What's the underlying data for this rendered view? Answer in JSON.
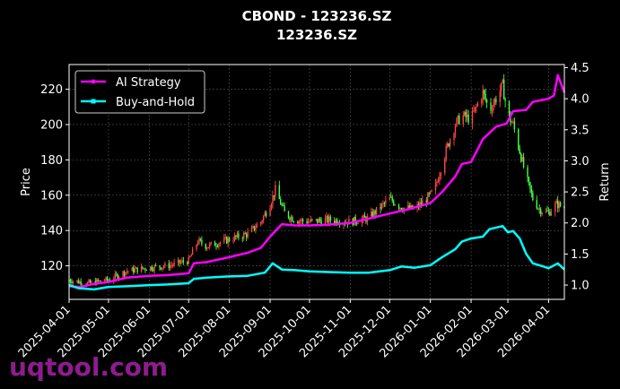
{
  "chart_data": {
    "type": "line",
    "title": "CBOND - 123236.SZ",
    "subtitle": "123236.SZ",
    "ylabel_left": "Price",
    "ylabel_right": "Return",
    "xlabel": "",
    "x_ticks": [
      "2025-04-01",
      "2025-05-01",
      "2025-06-01",
      "2025-07-01",
      "2025-08-01",
      "2025-09-01",
      "2025-10-01",
      "2025-11-01",
      "2025-12-01",
      "2026-01-01",
      "2026-02-01",
      "2026-03-01",
      "2026-04-01"
    ],
    "x_range": [
      "2025-04-01",
      "2026-04-13"
    ],
    "y_left_ticks": [
      120,
      140,
      160,
      180,
      200,
      220
    ],
    "y_left_range": [
      101,
      234
    ],
    "y_right_ticks": [
      1.0,
      1.5,
      2.0,
      2.5,
      3.0,
      3.5,
      4.0,
      4.5
    ],
    "y_right_range": [
      0.77,
      4.55
    ],
    "grid": true,
    "legend_position": "top-left",
    "candlestick_colors": {
      "up": "#ff4444",
      "down": "#44ff44"
    },
    "price_series": [
      [
        "2025-04-01",
        112
      ],
      [
        "2025-04-15",
        110
      ],
      [
        "2025-05-01",
        112
      ],
      [
        "2025-05-15",
        117
      ],
      [
        "2025-06-01",
        119
      ],
      [
        "2025-06-15",
        120
      ],
      [
        "2025-07-01",
        123
      ],
      [
        "2025-07-08",
        134
      ],
      [
        "2025-07-15",
        131
      ],
      [
        "2025-08-01",
        135
      ],
      [
        "2025-08-15",
        138
      ],
      [
        "2025-08-25",
        145
      ],
      [
        "2025-09-01",
        155
      ],
      [
        "2025-09-05",
        163
      ],
      [
        "2025-09-12",
        150
      ],
      [
        "2025-09-20",
        146
      ],
      [
        "2025-10-01",
        145
      ],
      [
        "2025-10-15",
        146
      ],
      [
        "2025-11-01",
        145
      ],
      [
        "2025-11-15",
        147
      ],
      [
        "2025-12-01",
        158
      ],
      [
        "2025-12-10",
        153
      ],
      [
        "2025-12-20",
        152
      ],
      [
        "2026-01-01",
        160
      ],
      [
        "2026-01-05",
        165
      ],
      [
        "2026-01-10",
        178
      ],
      [
        "2026-01-15",
        190
      ],
      [
        "2026-01-20",
        200
      ],
      [
        "2026-01-25",
        205
      ],
      [
        "2026-02-01",
        203
      ],
      [
        "2026-02-05",
        210
      ],
      [
        "2026-02-10",
        218
      ],
      [
        "2026-02-15",
        208
      ],
      [
        "2026-02-20",
        215
      ],
      [
        "2026-02-25",
        222
      ],
      [
        "2026-03-01",
        205
      ],
      [
        "2026-03-05",
        200
      ],
      [
        "2026-03-10",
        185
      ],
      [
        "2026-03-15",
        170
      ],
      [
        "2026-03-20",
        158
      ],
      [
        "2026-03-25",
        152
      ],
      [
        "2026-04-01",
        150
      ],
      [
        "2026-04-07",
        155
      ],
      [
        "2026-04-13",
        153
      ]
    ],
    "series": [
      {
        "name": "AI Strategy",
        "color": "#ff00ff",
        "axis": "right",
        "points": [
          [
            "2025-04-01",
            0.98
          ],
          [
            "2025-04-10",
            0.97
          ],
          [
            "2025-04-20",
            1.02
          ],
          [
            "2025-05-01",
            1.05
          ],
          [
            "2025-05-15",
            1.12
          ],
          [
            "2025-06-01",
            1.15
          ],
          [
            "2025-06-15",
            1.16
          ],
          [
            "2025-07-01",
            1.19
          ],
          [
            "2025-07-05",
            1.35
          ],
          [
            "2025-07-15",
            1.37
          ],
          [
            "2025-08-01",
            1.45
          ],
          [
            "2025-08-15",
            1.52
          ],
          [
            "2025-08-25",
            1.6
          ],
          [
            "2025-09-01",
            1.78
          ],
          [
            "2025-09-10",
            1.98
          ],
          [
            "2025-09-20",
            1.96
          ],
          [
            "2025-10-01",
            1.96
          ],
          [
            "2025-10-15",
            1.97
          ],
          [
            "2025-11-01",
            2.0
          ],
          [
            "2025-11-15",
            2.07
          ],
          [
            "2025-12-01",
            2.15
          ],
          [
            "2025-12-15",
            2.22
          ],
          [
            "2026-01-01",
            2.32
          ],
          [
            "2026-01-10",
            2.5
          ],
          [
            "2026-01-20",
            2.75
          ],
          [
            "2026-01-25",
            2.95
          ],
          [
            "2026-02-01",
            2.98
          ],
          [
            "2026-02-10",
            3.35
          ],
          [
            "2026-02-20",
            3.55
          ],
          [
            "2026-02-28",
            3.6
          ],
          [
            "2026-03-05",
            3.8
          ],
          [
            "2026-03-15",
            3.82
          ],
          [
            "2026-03-20",
            3.95
          ],
          [
            "2026-04-01",
            4.0
          ],
          [
            "2026-04-05",
            4.05
          ],
          [
            "2026-04-08",
            4.38
          ],
          [
            "2026-04-13",
            4.1
          ]
        ]
      },
      {
        "name": "Buy-and-Hold",
        "color": "#00ffff",
        "axis": "right",
        "points": [
          [
            "2025-04-01",
            1.0
          ],
          [
            "2025-04-08",
            0.95
          ],
          [
            "2025-04-20",
            0.93
          ],
          [
            "2025-05-01",
            0.97
          ],
          [
            "2025-05-15",
            0.98
          ],
          [
            "2025-06-01",
            1.0
          ],
          [
            "2025-06-15",
            1.01
          ],
          [
            "2025-07-01",
            1.03
          ],
          [
            "2025-07-05",
            1.1
          ],
          [
            "2025-07-15",
            1.12
          ],
          [
            "2025-08-01",
            1.14
          ],
          [
            "2025-08-15",
            1.15
          ],
          [
            "2025-08-28",
            1.2
          ],
          [
            "2025-09-03",
            1.35
          ],
          [
            "2025-09-10",
            1.25
          ],
          [
            "2025-09-20",
            1.24
          ],
          [
            "2025-10-01",
            1.22
          ],
          [
            "2025-10-15",
            1.21
          ],
          [
            "2025-11-01",
            1.2
          ],
          [
            "2025-11-15",
            1.2
          ],
          [
            "2025-12-01",
            1.24
          ],
          [
            "2025-12-10",
            1.3
          ],
          [
            "2025-12-20",
            1.28
          ],
          [
            "2026-01-01",
            1.32
          ],
          [
            "2026-01-10",
            1.45
          ],
          [
            "2026-01-20",
            1.58
          ],
          [
            "2026-01-25",
            1.7
          ],
          [
            "2026-02-01",
            1.75
          ],
          [
            "2026-02-10",
            1.78
          ],
          [
            "2026-02-15",
            1.9
          ],
          [
            "2026-02-25",
            1.95
          ],
          [
            "2026-03-01",
            1.85
          ],
          [
            "2026-03-05",
            1.87
          ],
          [
            "2026-03-10",
            1.75
          ],
          [
            "2026-03-15",
            1.5
          ],
          [
            "2026-03-20",
            1.35
          ],
          [
            "2026-03-28",
            1.3
          ],
          [
            "2026-04-01",
            1.27
          ],
          [
            "2026-04-08",
            1.35
          ],
          [
            "2026-04-13",
            1.25
          ]
        ]
      }
    ]
  },
  "watermark": "uqtool.com"
}
